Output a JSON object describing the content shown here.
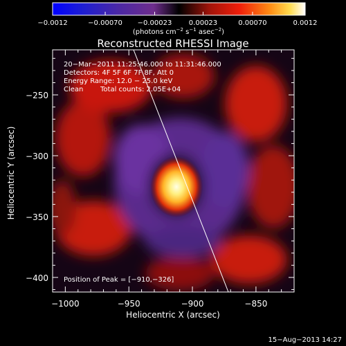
{
  "chart_data": {
    "type": "heatmap",
    "title": "Reconstructed RHESSI Image",
    "xlabel": "Heliocentric X (arcsec)",
    "ylabel": "Heliocentric Y (arcsec)",
    "xlim": [
      -1010,
      -820
    ],
    "ylim": [
      -412,
      -213
    ],
    "xticks": [
      -1000,
      -950,
      -900,
      -850
    ],
    "yticks": [
      -250,
      -300,
      -350,
      -400
    ],
    "xtick_labels": [
      "−1000",
      "−950",
      "−900",
      "−850"
    ],
    "ytick_labels": [
      "−250",
      "−300",
      "−350",
      "−400"
    ],
    "peak": {
      "x": -910,
      "y": -326
    },
    "colorbar": {
      "min": -0.0012,
      "max": 0.0012,
      "ticks": [
        -0.0012,
        -0.0007,
        -0.00023,
        0.00023,
        0.0007,
        0.0012
      ],
      "tick_labels": [
        "−0.0012",
        "−0.00070",
        "−0.00023",
        "0.00023",
        "0.00070",
        "0.0012"
      ],
      "unit_main": "(photons cm",
      "unit_exp1": "−2",
      "unit_mid": " s",
      "unit_exp2": "−1",
      "unit_mid2": " asec",
      "unit_exp3": "−2",
      "unit_end": ")"
    },
    "annotations": {
      "time_range": "20−Mar−2011 11:25:46.000 to 11:31:46.000",
      "detectors": "Detectors: 4F 5F 6F 7F 8F, Att 0",
      "energy": "Energy Range: 12.0 − 25.0 keV",
      "clean": "Clean",
      "counts": "Total counts: 2.05E+04",
      "peak_label": "Position of Peak = [−910,−326]"
    },
    "footer_date": "15−Aug−2013 14:27",
    "colors": {
      "background": "#000000",
      "text": "#ffffff",
      "negative": "#5a2d8c",
      "positive": "#c81e0a",
      "peak": "#ffffc0"
    }
  }
}
